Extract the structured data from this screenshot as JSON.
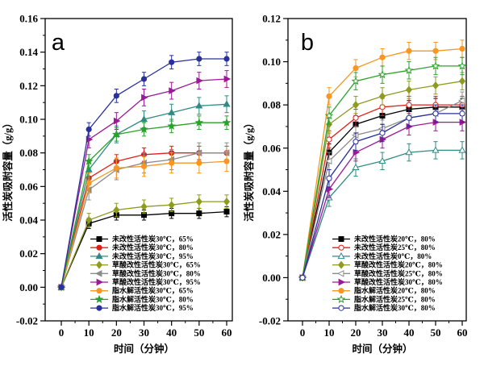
{
  "figure": {
    "background": "#ffffff",
    "axis_color": "#000000",
    "text_color": "#000000"
  },
  "chart_data": [
    {
      "type": "line",
      "panel_label": "a",
      "xlabel": "时间（分钟）",
      "ylabel": "活性炭吸附容量（g/g）",
      "x": [
        0,
        10,
        20,
        30,
        40,
        50,
        60
      ],
      "x_ticks": [
        0,
        10,
        20,
        30,
        40,
        50,
        60
      ],
      "ylim": [
        -0.02,
        0.16
      ],
      "y_tick_step": 0.02,
      "y_minor_step": 0.01,
      "x_minor_step": 5,
      "grid": false,
      "error_bars": true,
      "legend_position": "inside-lower-right",
      "series": [
        {
          "name": "未改性活性炭30℃，65%",
          "color": "#000000",
          "marker": "square",
          "filled": true,
          "values": [
            0,
            0.038,
            0.043,
            0.043,
            0.044,
            0.044,
            0.045
          ],
          "err": 0.003
        },
        {
          "name": "未改性活性炭30℃，80%",
          "color": "#e01f1a",
          "marker": "circle",
          "filled": true,
          "values": [
            0,
            0.065,
            0.075,
            0.079,
            0.08,
            0.08,
            0.08
          ],
          "err": 0.004
        },
        {
          "name": "未改性活性炭30℃，95%",
          "color": "#2e8b84",
          "marker": "triangle-up",
          "filled": true,
          "values": [
            0,
            0.07,
            0.091,
            0.1,
            0.104,
            0.108,
            0.109
          ],
          "err": 0.005
        },
        {
          "name": "草酸改性活性炭30℃，65%",
          "color": "#8e9b20",
          "marker": "diamond",
          "filled": true,
          "values": [
            0,
            0.04,
            0.046,
            0.048,
            0.049,
            0.051,
            0.051
          ],
          "err": 0.004
        },
        {
          "name": "草酸改性活性炭30℃，80%",
          "color": "#8c8c8c",
          "marker": "triangle-left",
          "filled": true,
          "values": [
            0,
            0.058,
            0.07,
            0.074,
            0.076,
            0.08,
            0.08
          ],
          "err": 0.006
        },
        {
          "name": "草酸改性活性炭30℃，95%",
          "color": "#9a1a96",
          "marker": "triangle-right",
          "filled": true,
          "values": [
            0,
            0.088,
            0.099,
            0.113,
            0.117,
            0.123,
            0.124
          ],
          "err": 0.005
        },
        {
          "name": "脂水解活性炭30℃，65%",
          "color": "#f59722",
          "marker": "circle",
          "filled": true,
          "values": [
            0,
            0.062,
            0.071,
            0.072,
            0.074,
            0.074,
            0.075
          ],
          "err": 0.006
        },
        {
          "name": "脂水解活性炭30℃，80%",
          "color": "#2da02d",
          "marker": "star",
          "filled": true,
          "values": [
            0,
            0.075,
            0.091,
            0.094,
            0.096,
            0.098,
            0.098
          ],
          "err": 0.004
        },
        {
          "name": "脂水解活性炭30℃，95%",
          "color": "#28309c",
          "marker": "circle",
          "filled": true,
          "values": [
            0,
            0.094,
            0.114,
            0.124,
            0.134,
            0.136,
            0.136
          ],
          "err": 0.004
        }
      ]
    },
    {
      "type": "line",
      "panel_label": "b",
      "xlabel": "时间（分钟）",
      "ylabel": "活性炭吸附容量（g/g）",
      "x": [
        0,
        10,
        20,
        30,
        40,
        50,
        60
      ],
      "x_ticks": [
        0,
        10,
        20,
        30,
        40,
        50,
        60
      ],
      "ylim": [
        -0.02,
        0.12
      ],
      "y_tick_step": 0.02,
      "y_minor_step": 0.01,
      "x_minor_step": 5,
      "grid": false,
      "error_bars": true,
      "legend_position": "inside-lower-right",
      "series": [
        {
          "name": "未改性活性炭20℃，80%",
          "color": "#000000",
          "marker": "square",
          "filled": true,
          "values": [
            0,
            0.058,
            0.071,
            0.075,
            0.078,
            0.079,
            0.079
          ],
          "err": 0.004
        },
        {
          "name": "未改性活性炭25℃，80%",
          "color": "#e01f1a",
          "marker": "circle",
          "filled": false,
          "values": [
            0,
            0.064,
            0.074,
            0.079,
            0.08,
            0.08,
            0.08
          ],
          "err": 0.004
        },
        {
          "name": "未改性活性炭0℃，80%",
          "color": "#2e8b84",
          "marker": "triangle-up",
          "filled": false,
          "values": [
            0,
            0.037,
            0.051,
            0.054,
            0.058,
            0.059,
            0.059
          ],
          "err": 0.004
        },
        {
          "name": "草酸改性活性炭20℃，80%",
          "color": "#8e9b20",
          "marker": "diamond",
          "filled": true,
          "values": [
            0,
            0.071,
            0.08,
            0.084,
            0.087,
            0.089,
            0.091
          ],
          "err": 0.004
        },
        {
          "name": "草酸改性活性炭25℃，80%",
          "color": "#8c8c8c",
          "marker": "triangle-left",
          "filled": false,
          "values": [
            0,
            0.054,
            0.066,
            0.069,
            0.074,
            0.076,
            0.082
          ],
          "err": 0.004
        },
        {
          "name": "草酸改性活性炭30℃，80%",
          "color": "#9a1a96",
          "marker": "triangle-right",
          "filled": true,
          "values": [
            0,
            0.041,
            0.058,
            0.064,
            0.07,
            0.072,
            0.072
          ],
          "err": 0.004
        },
        {
          "name": "脂水解活性炭20℃，80%",
          "color": "#f59722",
          "marker": "circle",
          "filled": true,
          "values": [
            0,
            0.084,
            0.097,
            0.102,
            0.105,
            0.105,
            0.106
          ],
          "err": 0.004
        },
        {
          "name": "脂水解活性炭25℃，80%",
          "color": "#2da02d",
          "marker": "star",
          "filled": false,
          "values": [
            0,
            0.075,
            0.091,
            0.094,
            0.096,
            0.098,
            0.098
          ],
          "err": 0.004
        },
        {
          "name": "脂水解活性炭30℃，80%",
          "color": "#28309c",
          "marker": "circle",
          "filled": false,
          "values": [
            0,
            0.046,
            0.063,
            0.067,
            0.074,
            0.076,
            0.076
          ],
          "err": 0.004
        }
      ]
    }
  ]
}
